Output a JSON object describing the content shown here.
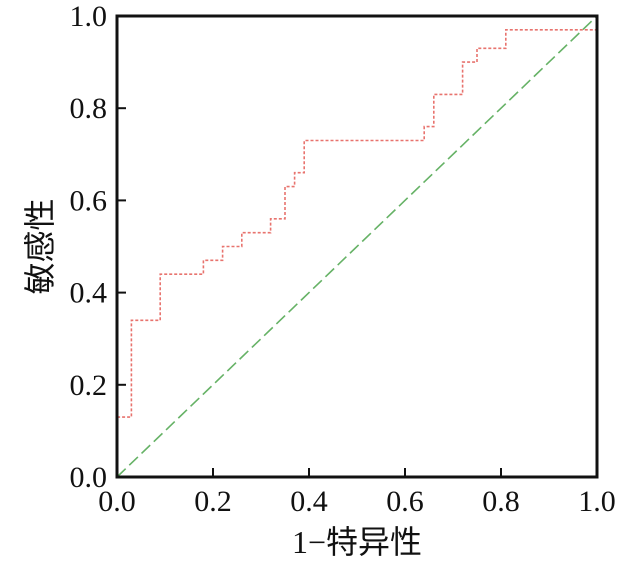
{
  "chart_data": {
    "type": "line",
    "title": "",
    "xlabel": "1−特异性",
    "ylabel": "敏感性",
    "xlim": [
      0,
      1
    ],
    "ylim": [
      0,
      1
    ],
    "grid": false,
    "x_ticks": [
      "0.0",
      "0.2",
      "0.4",
      "0.6",
      "0.8",
      "1.0"
    ],
    "y_ticks": [
      "0.0",
      "0.2",
      "0.4",
      "0.6",
      "0.8",
      "1.0"
    ],
    "series": [
      {
        "style": "step",
        "color": "#e8736e",
        "dash": "dotted",
        "x": [
          0,
          0,
          0.03,
          0.03,
          0.09,
          0.09,
          0.18,
          0.18,
          0.22,
          0.22,
          0.26,
          0.26,
          0.32,
          0.32,
          0.35,
          0.35,
          0.37,
          0.37,
          0.39,
          0.39,
          0.64,
          0.64,
          0.66,
          0.66,
          0.72,
          0.72,
          0.75,
          0.75,
          0.81,
          0.81,
          1.0,
          1.0
        ],
        "y": [
          0,
          0.13,
          0.13,
          0.34,
          0.34,
          0.44,
          0.44,
          0.47,
          0.47,
          0.5,
          0.5,
          0.53,
          0.53,
          0.56,
          0.56,
          0.63,
          0.63,
          0.66,
          0.66,
          0.73,
          0.73,
          0.76,
          0.76,
          0.83,
          0.83,
          0.9,
          0.9,
          0.93,
          0.93,
          0.97,
          0.97,
          1.0
        ]
      },
      {
        "style": "diagonal",
        "color": "#66b266",
        "dash": "dashed",
        "x": [
          0,
          1
        ],
        "y": [
          0,
          1
        ]
      }
    ]
  }
}
